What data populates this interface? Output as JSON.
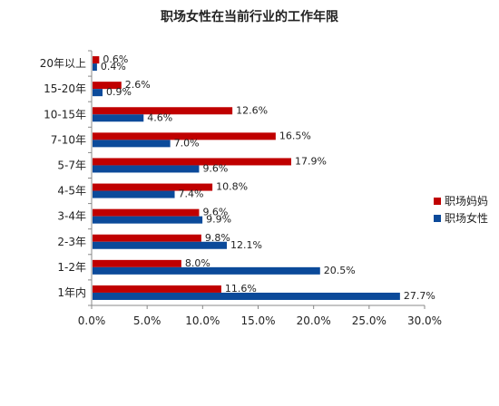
{
  "chart_data": {
    "type": "bar",
    "orientation": "horizontal",
    "title": "职场女性在当前行业的工作年限",
    "categories": [
      "20年以上",
      "15-20年",
      "10-15年",
      "7-10年",
      "5-7年",
      "4-5年",
      "3-4年",
      "2-3年",
      "1-2年",
      "1年内"
    ],
    "series": [
      {
        "name": "职场妈妈",
        "color": "#C00000",
        "values": [
          0.6,
          2.6,
          12.6,
          16.5,
          17.9,
          10.8,
          9.6,
          9.8,
          8.0,
          11.6
        ],
        "labels": [
          "0.6%",
          "2.6%",
          "12.6%",
          "16.5%",
          "17.9%",
          "10.8%",
          "9.6%",
          "9.8%",
          "8.0%",
          "11.6%"
        ]
      },
      {
        "name": "职场女性",
        "color": "#0B4A9A",
        "values": [
          0.4,
          0.9,
          4.6,
          7.0,
          9.6,
          7.4,
          9.9,
          12.1,
          20.5,
          27.7
        ],
        "labels": [
          "0.4%",
          "0.9%",
          "4.6%",
          "7.0%",
          "9.6%",
          "7.4%",
          "9.9%",
          "12.1%",
          "20.5%",
          "27.7%"
        ]
      }
    ],
    "xlim": [
      0,
      30
    ],
    "xticks": [
      0,
      5,
      10,
      15,
      20,
      25,
      30
    ],
    "xtick_labels": [
      "0.0%",
      "5.0%",
      "10.0%",
      "15.0%",
      "20.0%",
      "25.0%",
      "30.0%"
    ],
    "grid": false,
    "legend_position": "right"
  }
}
